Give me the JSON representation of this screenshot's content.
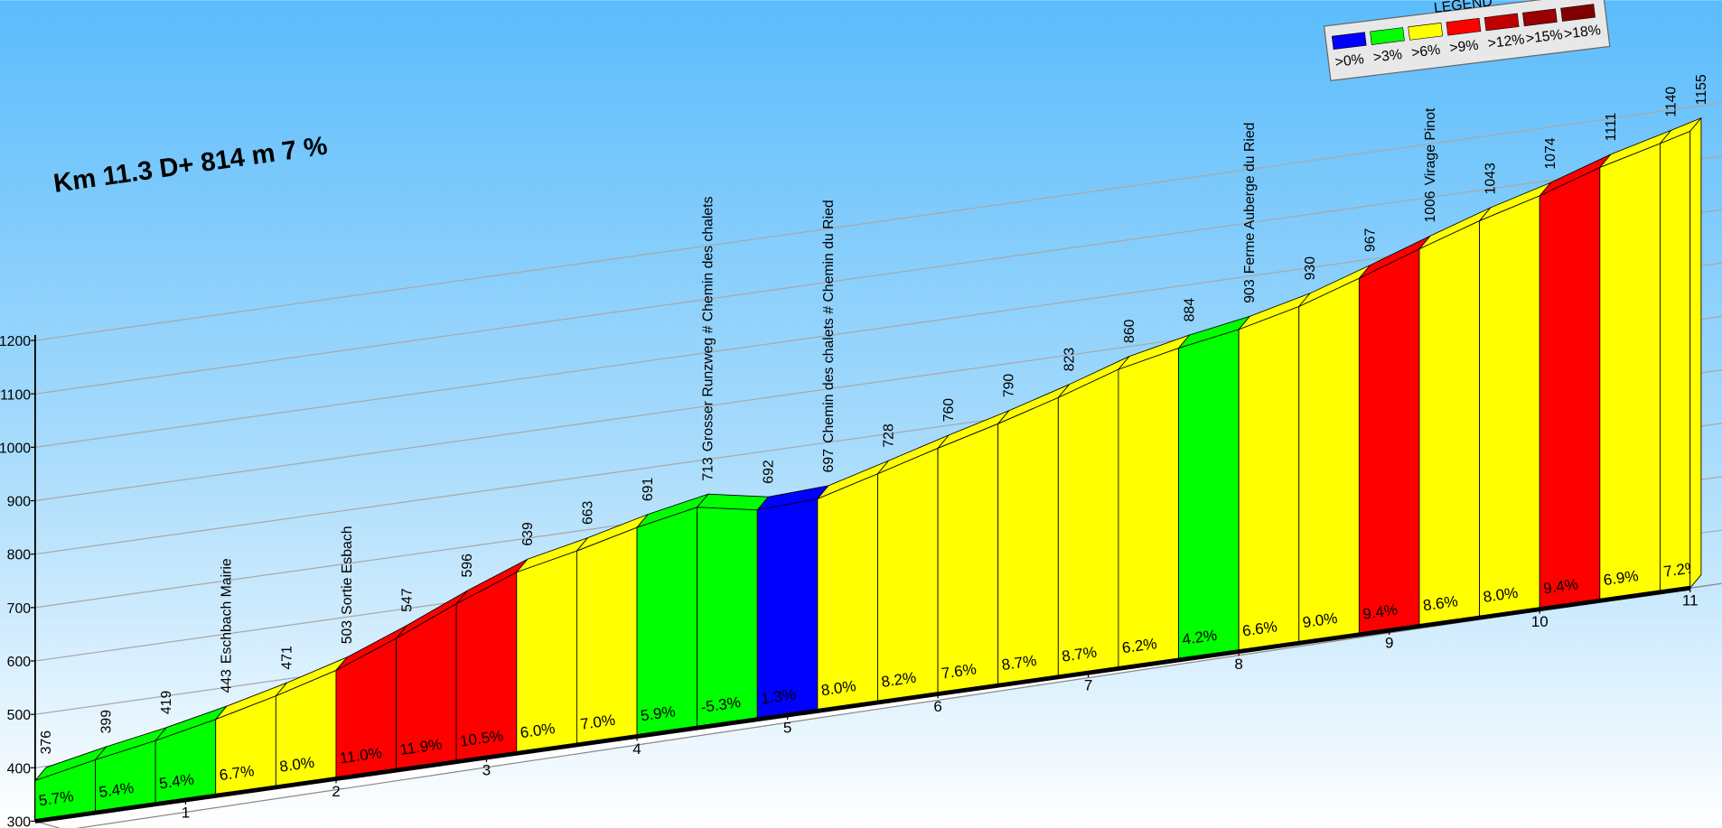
{
  "chart_data": {
    "type": "climb-profile",
    "title": "Km 11.3 D+ 814 m 7 %",
    "x": [
      0,
      0.4,
      0.8,
      1.2,
      1.6,
      2.0,
      2.4,
      2.8,
      3.2,
      3.6,
      4.0,
      4.4,
      4.8,
      5.2,
      5.6,
      6.0,
      6.4,
      6.8,
      7.2,
      7.6,
      8.0,
      8.4,
      8.8,
      9.2,
      9.6,
      10.0,
      10.4,
      10.8,
      11.0
    ],
    "values": [
      376,
      399,
      419,
      443,
      471,
      503,
      547,
      596,
      639,
      663,
      691,
      713,
      692,
      697,
      728,
      760,
      790,
      823,
      860,
      884,
      903,
      930,
      967,
      1006,
      1043,
      1074,
      1111,
      1140,
      1155
    ],
    "point_names": [
      null,
      null,
      null,
      "Eschbach Mairie",
      null,
      "Sortie Esbach",
      null,
      null,
      null,
      null,
      null,
      "Grosser Runzweg # Chemin des chalets",
      null,
      "Chemin des chalets # Chemin du Ried",
      null,
      null,
      null,
      null,
      null,
      null,
      "Ferme Auberge du Ried",
      null,
      null,
      "Virage Pinot",
      null,
      null,
      null,
      null,
      null
    ],
    "segments": {
      "values": [
        5.7,
        5.4,
        5.4,
        6.7,
        8.0,
        11.0,
        11.9,
        10.5,
        6.0,
        7.0,
        5.9,
        -5.3,
        1.3,
        8.0,
        8.2,
        7.6,
        8.7,
        8.7,
        6.2,
        4.2,
        6.6,
        9.0,
        9.4,
        8.6,
        8.0,
        9.4,
        6.9,
        7.2
      ],
      "value_labels": [
        "5.7%",
        "5.4%",
        "5.4%",
        "6.7%",
        "8.0%",
        "11.0%",
        "11.9%",
        "10.5%",
        "6.0%",
        "7.0%",
        "5.9%",
        "-5.3%",
        "1.3%",
        "8.0%",
        "8.2%",
        "7.6%",
        "8.7%",
        "8.7%",
        "6.2%",
        "4.2%",
        "6.6%",
        "9.0%",
        "9.4%",
        "8.6%",
        "8.0%",
        "9.4%",
        "6.9%",
        "7.2%"
      ],
      "colors": [
        "#00ff00",
        "#00ff00",
        "#00ff00",
        "#ffff00",
        "#ffff00",
        "#ff0000",
        "#ff0000",
        "#ff0000",
        "#ffff00",
        "#ffff00",
        "#00ff00",
        "#00ff00",
        "#0000ff",
        "#ffff00",
        "#ffff00",
        "#ffff00",
        "#ffff00",
        "#ffff00",
        "#ffff00",
        "#00ff00",
        "#ffff00",
        "#ffff00",
        "#ff0000",
        "#ffff00",
        "#ffff00",
        "#ff0000",
        "#ffff00",
        "#ffff00"
      ]
    },
    "ylim": [
      300,
      1200
    ],
    "yticks": [
      300,
      400,
      500,
      600,
      700,
      800,
      900,
      1000,
      1100,
      1200
    ],
    "xlim": [
      0,
      11
    ],
    "xticks": [
      1,
      2,
      3,
      4,
      5,
      6,
      7,
      8,
      9,
      10,
      11
    ],
    "grid": true,
    "legend": {
      "title": "LEGEND",
      "items": [
        {
          "label": ">0%",
          "color": "#0000ff"
        },
        {
          "label": ">3%",
          "color": "#00ff00"
        },
        {
          "label": ">6%",
          "color": "#ffff00"
        },
        {
          "label": ">9%",
          "color": "#ff0000"
        },
        {
          "label": ">12%",
          "color": "#c00000"
        },
        {
          "label": ">15%",
          "color": "#990000"
        },
        {
          "label": ">18%",
          "color": "#800000"
        }
      ]
    }
  }
}
